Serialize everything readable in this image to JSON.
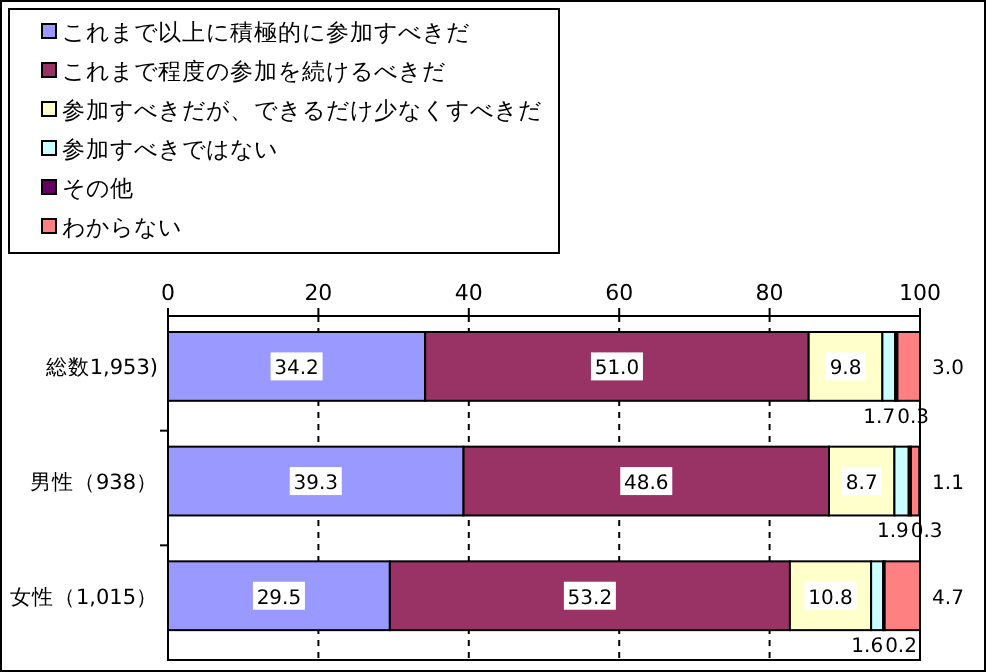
{
  "chart_data": {
    "type": "bar",
    "orientation": "horizontal",
    "stacked": true,
    "grid": "x",
    "legend": "top left",
    "categories": [
      "総数1,953)",
      "男性（938）",
      "女性（1,015）"
    ],
    "xlim": [
      0,
      100
    ],
    "xticks": [
      0,
      20,
      40,
      60,
      80,
      100
    ],
    "series": [
      {
        "name": "これまで以上に積極的に参加すべきだ",
        "color": "#9999ff",
        "values": [
          34.2,
          39.3,
          29.5
        ],
        "value_labels": [
          "34.2",
          "39.3",
          "29.5"
        ]
      },
      {
        "name": "これまで程度の参加を続けるべきだ",
        "color": "#993366",
        "values": [
          51.0,
          48.6,
          53.2
        ],
        "value_labels": [
          "51.0",
          "48.6",
          "53.2"
        ]
      },
      {
        "name": "参加すべきだが、できるだけ少なくすべきだ",
        "color": "#ffffcc",
        "values": [
          9.8,
          8.7,
          10.8
        ],
        "value_labels": [
          "9.8",
          "8.7",
          "10.8"
        ]
      },
      {
        "name": "参加すべきではない",
        "color": "#ccffff",
        "values": [
          1.7,
          1.9,
          1.6
        ],
        "value_labels": [
          "1.7",
          "1.9",
          "1.6"
        ]
      },
      {
        "name": "その他",
        "color": "#660066",
        "values": [
          0.3,
          0.3,
          0.2
        ],
        "value_labels": [
          "0.3",
          "0.3",
          "0.2"
        ]
      },
      {
        "name": "わからない",
        "color": "#ff8080",
        "values": [
          3.0,
          1.1,
          4.7
        ],
        "value_labels": [
          "3.0",
          "1.1",
          "4.7"
        ]
      }
    ]
  }
}
